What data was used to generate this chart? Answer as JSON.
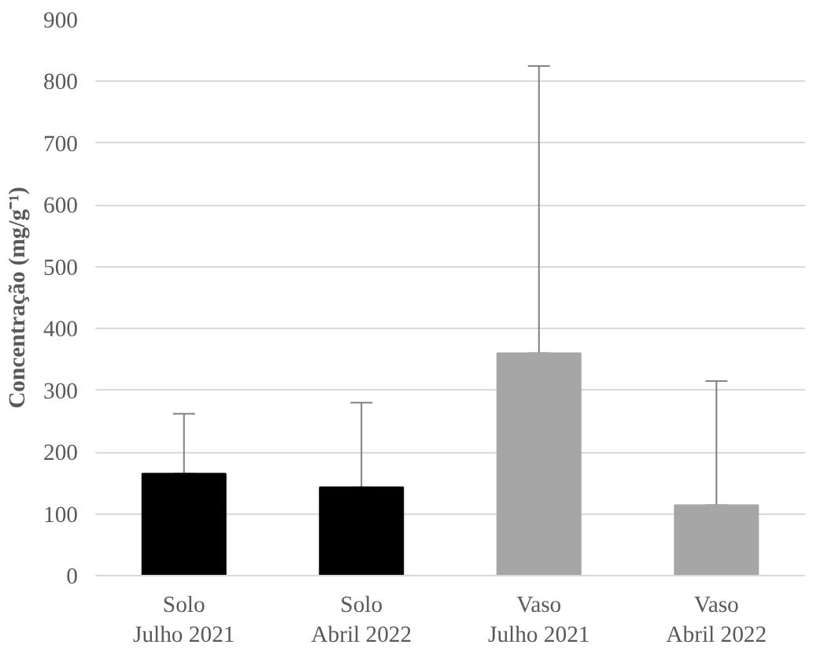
{
  "chart_data": {
    "type": "bar",
    "ylabel": "Concentração (mg/g⁻¹)",
    "categories": [
      "Solo\nJulho 2021",
      "Solo\nAbril 2022",
      "Vaso\nJulho 2021",
      "Vaso\nAbril 2022"
    ],
    "values": [
      165,
      143,
      360,
      114
    ],
    "colors": [
      "#000000",
      "#000000",
      "#a6a6a6",
      "#a6a6a6"
    ],
    "errors": [
      [
        165,
        262
      ],
      [
        143,
        280
      ],
      [
        360,
        825
      ],
      [
        114,
        315
      ]
    ],
    "ylim": [
      0,
      900
    ],
    "yticks": [
      0,
      100,
      200,
      300,
      400,
      500,
      600,
      700,
      800,
      900
    ],
    "grid": "y"
  }
}
